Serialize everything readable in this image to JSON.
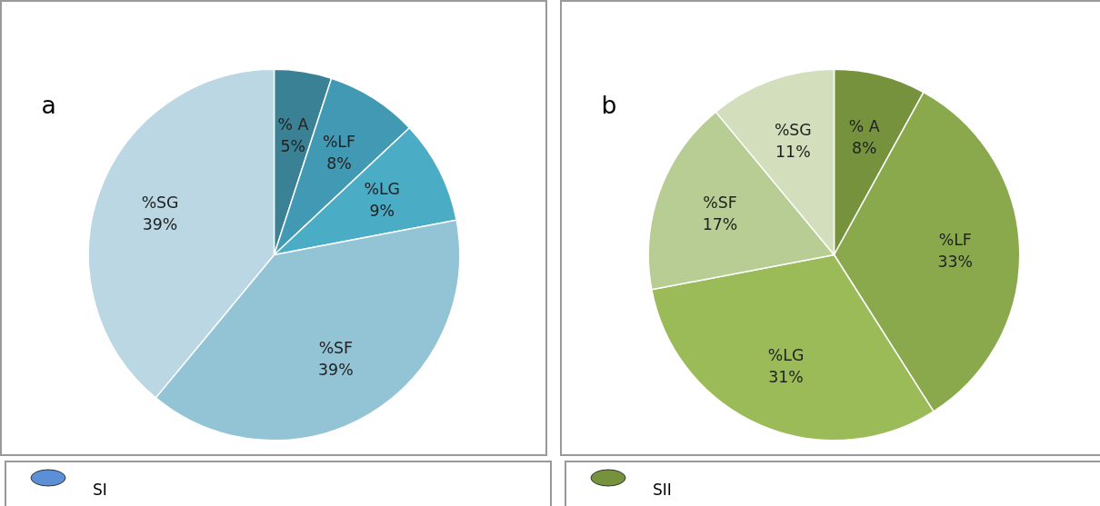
{
  "chart_data": [
    {
      "type": "pie",
      "title": "a",
      "categories": [
        "% A",
        "%LF",
        "%LG",
        "%SF",
        "%SG"
      ],
      "values": [
        5,
        8,
        9,
        39,
        39
      ],
      "colors": [
        "#3a8196",
        "#4299b3",
        "#4bacc6",
        "#93c4d6",
        "#bad7e3"
      ],
      "value_labels": [
        "5%",
        "8%",
        "9%",
        "39%",
        "39%"
      ],
      "annotations": [
        "SI"
      ]
    },
    {
      "type": "pie",
      "title": "b",
      "categories": [
        "% A",
        "%LF",
        "%LG",
        "%SF",
        "%SG"
      ],
      "values": [
        8,
        33,
        31,
        17,
        11
      ],
      "colors": [
        "#76923c",
        "#8aa94c",
        "#9bbb59",
        "#b8cd93",
        "#d3dfbc"
      ],
      "value_labels": [
        "8%",
        "33%",
        "31%",
        "17%",
        "11%"
      ],
      "annotations": [
        "SII"
      ]
    }
  ]
}
